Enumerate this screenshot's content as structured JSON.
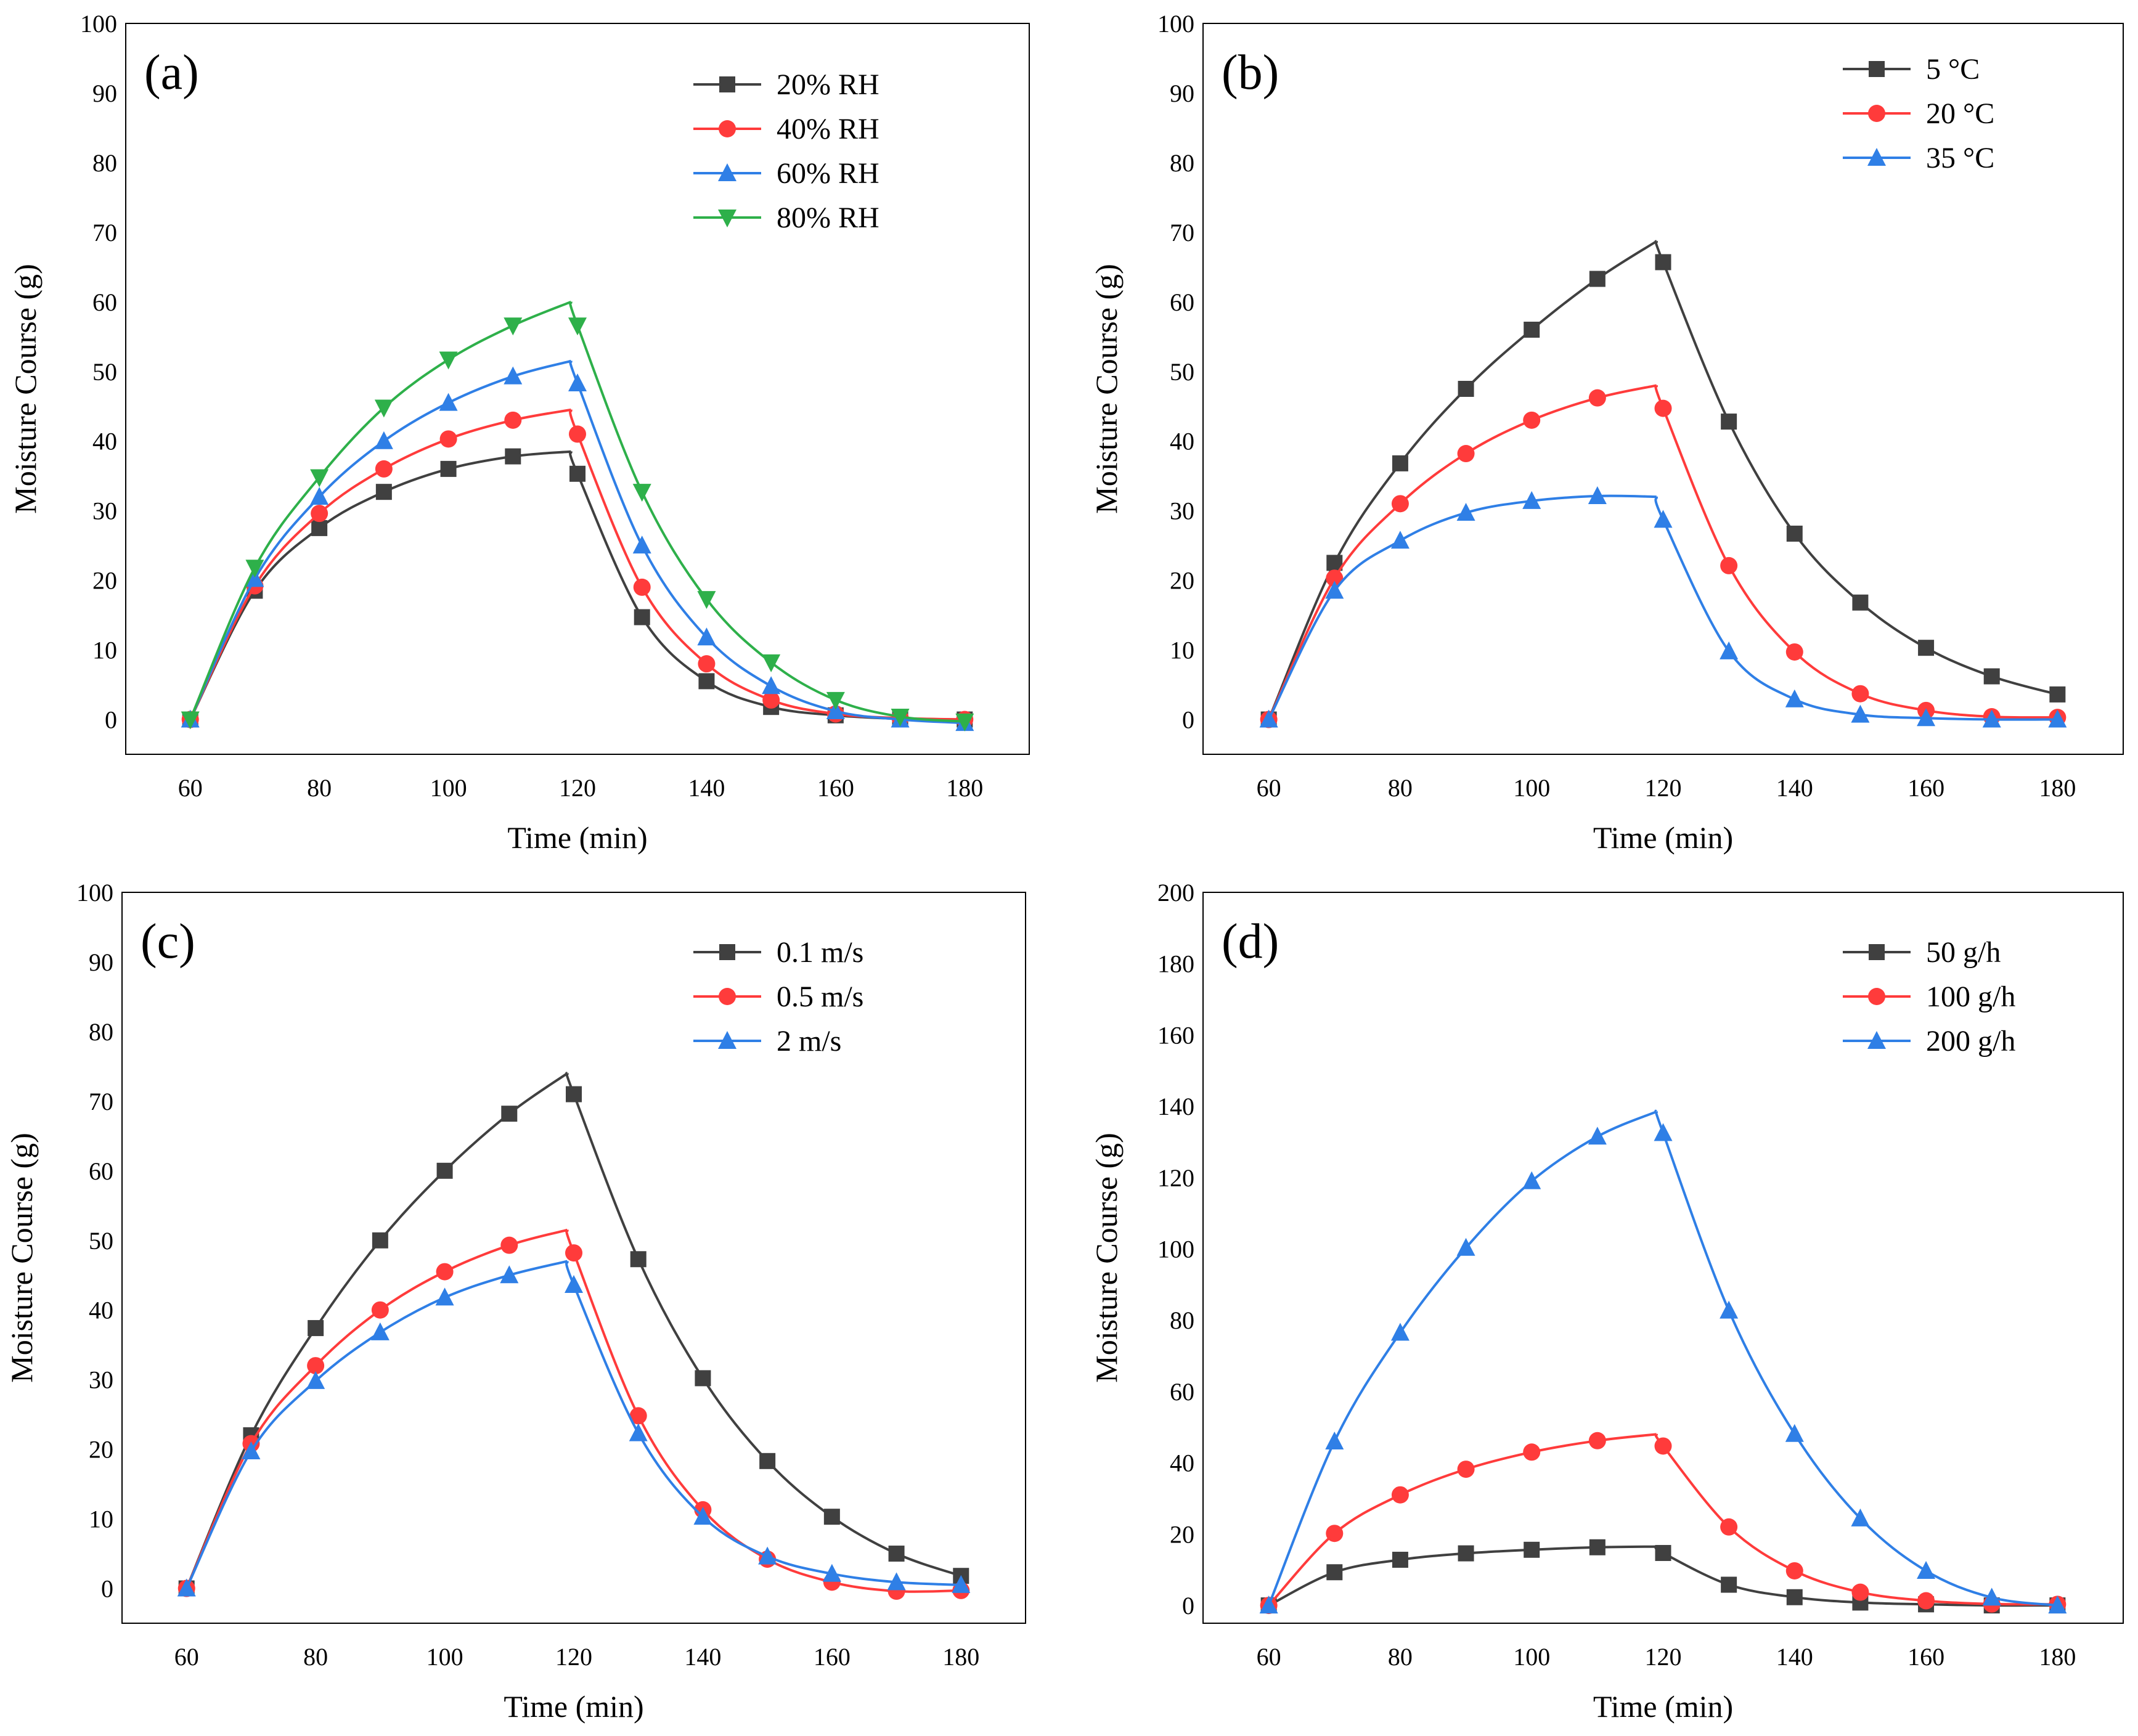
{
  "figure_title": "",
  "colors": {
    "black": "#404040",
    "red": "#FF3B3B",
    "blue": "#2F7FE6",
    "green": "#2EB04A"
  },
  "chart_data": [
    {
      "id": "a",
      "panel_label": "(a)",
      "type": "line",
      "xlabel": "Time (min)",
      "ylabel": "Moisture Course (g)",
      "xlim": [
        50,
        190
      ],
      "ylim": [
        -5,
        100
      ],
      "xticks": [
        60,
        80,
        100,
        120,
        140,
        160,
        180
      ],
      "yticks": [
        0,
        10,
        20,
        30,
        40,
        50,
        60,
        70,
        80,
        90,
        100
      ],
      "legend_position": "top-right",
      "x": [
        60,
        70,
        80,
        90,
        100,
        110,
        120,
        130,
        140,
        150,
        160,
        170,
        180
      ],
      "series": [
        {
          "name": "20% RH",
          "color": "#404040",
          "marker": "square",
          "peak": 38.5,
          "values": [
            0,
            18.5,
            27.5,
            32.7,
            36,
            37.8,
            35.3,
            14.7,
            5.5,
            1.8,
            0.6,
            0.1,
            0
          ]
        },
        {
          "name": "40% RH",
          "color": "#FF3B3B",
          "marker": "circle",
          "peak": 44.5,
          "values": [
            0,
            19.2,
            29.6,
            36,
            40.3,
            43,
            41,
            19,
            8,
            2.8,
            0.8,
            0.2,
            0
          ]
        },
        {
          "name": "60% RH",
          "color": "#2F7FE6",
          "marker": "triangle-up",
          "peak": 51.5,
          "values": [
            0,
            20.2,
            32,
            40,
            45.5,
            49.3,
            48.3,
            25,
            11.8,
            4.8,
            1.2,
            0,
            -0.5
          ]
        },
        {
          "name": "80% RH",
          "color": "#2EB04A",
          "marker": "triangle-down",
          "peak": 60,
          "values": [
            0,
            21.8,
            34.8,
            44.8,
            51.7,
            56.6,
            56.6,
            32.7,
            17.3,
            8.2,
            2.8,
            0.4,
            -0.3
          ]
        }
      ]
    },
    {
      "id": "b",
      "panel_label": "(b)",
      "type": "line",
      "xlabel": "Time (min)",
      "ylabel": "Moisture Course (g)",
      "xlim": [
        50,
        190
      ],
      "ylim": [
        -5,
        100
      ],
      "xticks": [
        60,
        80,
        100,
        120,
        140,
        160,
        180
      ],
      "yticks": [
        0,
        10,
        20,
        30,
        40,
        50,
        60,
        70,
        80,
        90,
        100
      ],
      "legend_position": "top-right",
      "x": [
        60,
        70,
        80,
        90,
        100,
        110,
        120,
        130,
        140,
        150,
        160,
        170,
        180
      ],
      "series": [
        {
          "name": "5 °C",
          "color": "#404040",
          "marker": "square",
          "peak": 68.7,
          "values": [
            0,
            22.5,
            36.8,
            47.5,
            56,
            63.3,
            65.7,
            42.8,
            26.7,
            16.8,
            10.3,
            6.2,
            3.6
          ]
        },
        {
          "name": "20 °C",
          "color": "#FF3B3B",
          "marker": "circle",
          "peak": 48,
          "values": [
            0,
            20.3,
            31,
            38.2,
            43,
            46.2,
            44.7,
            22.1,
            9.7,
            3.7,
            1.3,
            0.4,
            0.3
          ]
        },
        {
          "name": "35 °C",
          "color": "#2F7FE6",
          "marker": "triangle-up",
          "peak": 32,
          "values": [
            0,
            18.5,
            25.7,
            29.7,
            31.4,
            32.1,
            28.7,
            9.8,
            2.9,
            0.7,
            0.2,
            0,
            0
          ]
        }
      ]
    },
    {
      "id": "c",
      "panel_label": "(c)",
      "type": "line",
      "xlabel": "Time (min)",
      "ylabel": "Moisture Course (g)",
      "xlim": [
        50,
        190
      ],
      "ylim": [
        -5,
        100
      ],
      "xticks": [
        60,
        80,
        100,
        120,
        140,
        160,
        180
      ],
      "yticks": [
        0,
        10,
        20,
        30,
        40,
        50,
        60,
        70,
        80,
        90,
        100
      ],
      "legend_position": "top-right",
      "x": [
        60,
        70,
        80,
        90,
        100,
        110,
        120,
        130,
        140,
        150,
        160,
        170,
        180
      ],
      "series": [
        {
          "name": "0.1 m/s",
          "color": "#404040",
          "marker": "square",
          "peak": 74,
          "values": [
            0,
            22,
            37.4,
            50,
            60,
            68.2,
            71,
            47.3,
            30.2,
            18.3,
            10.3,
            5,
            1.8
          ]
        },
        {
          "name": "0.5 m/s",
          "color": "#FF3B3B",
          "marker": "circle",
          "peak": 51.5,
          "values": [
            0,
            20.8,
            32,
            40,
            45.5,
            49.3,
            48.2,
            24.8,
            11.3,
            4.2,
            0.9,
            -0.4,
            -0.3
          ]
        },
        {
          "name": "2 m/s",
          "color": "#2F7FE6",
          "marker": "triangle-up",
          "peak": 47,
          "values": [
            0,
            19.7,
            29.8,
            36.8,
            41.8,
            45,
            43.6,
            22.3,
            10.3,
            4.6,
            2.1,
            0.9,
            0.5
          ]
        }
      ]
    },
    {
      "id": "d",
      "panel_label": "(d)",
      "type": "line",
      "xlabel": "Time (min)",
      "ylabel": "Moisture Course (g)",
      "xlim": [
        50,
        190
      ],
      "ylim": [
        -5,
        200
      ],
      "xticks": [
        60,
        80,
        100,
        120,
        140,
        160,
        180
      ],
      "yticks": [
        0,
        20,
        40,
        60,
        80,
        100,
        120,
        140,
        160,
        180,
        200
      ],
      "legend_position": "top-right",
      "x": [
        60,
        70,
        80,
        90,
        100,
        110,
        120,
        130,
        140,
        150,
        160,
        170,
        180
      ],
      "series": [
        {
          "name": "50 g/h",
          "color": "#404040",
          "marker": "square",
          "peak": 16.5,
          "values": [
            0,
            9.3,
            12.8,
            14.6,
            15.6,
            16.3,
            14.7,
            5.8,
            2.3,
            0.8,
            0.3,
            0,
            0
          ]
        },
        {
          "name": "100 g/h",
          "color": "#FF3B3B",
          "marker": "circle",
          "peak": 48,
          "values": [
            0,
            20.2,
            31,
            38.2,
            43,
            46.2,
            44.7,
            22,
            9.7,
            3.7,
            1.3,
            0.4,
            0.3
          ]
        },
        {
          "name": "200 g/h",
          "color": "#2F7FE6",
          "marker": "triangle-up",
          "peak": 138.5,
          "values": [
            0,
            46,
            76.5,
            100.3,
            119,
            131.5,
            132.5,
            82.7,
            48.1,
            24.4,
            9.7,
            2.2,
            0
          ]
        }
      ]
    }
  ]
}
